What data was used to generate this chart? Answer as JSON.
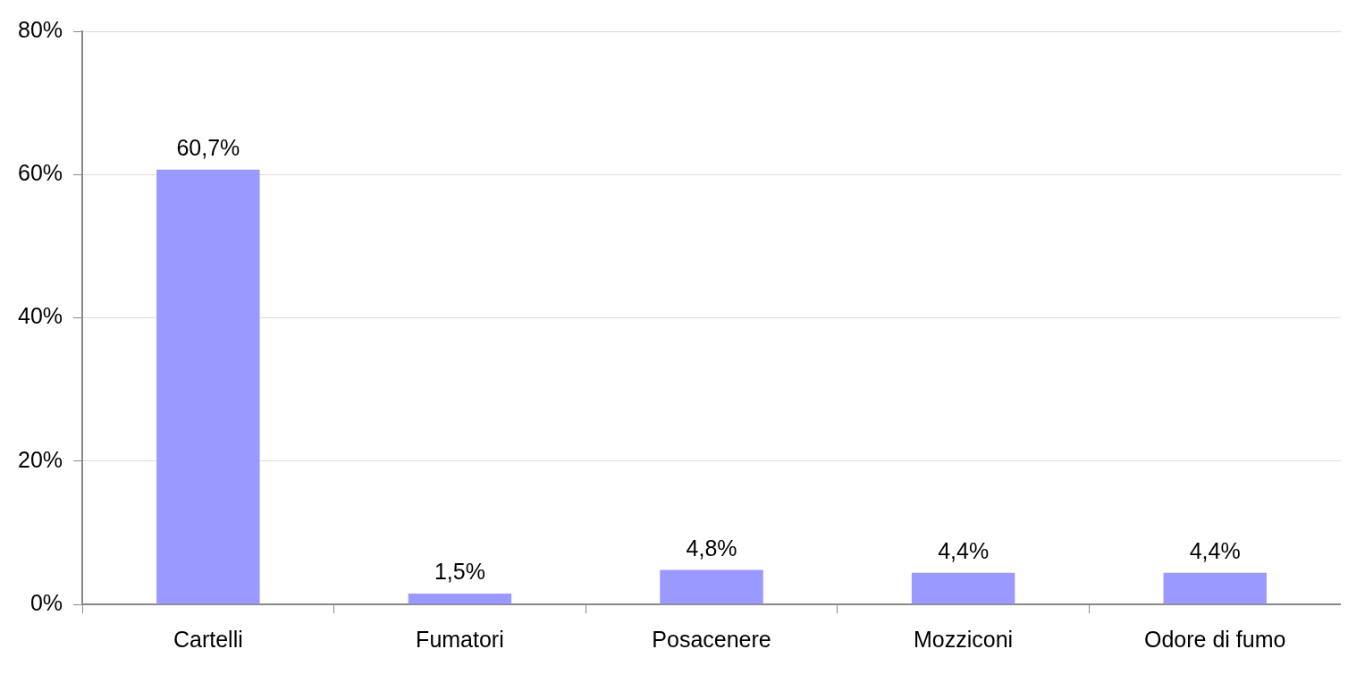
{
  "chart_data": {
    "type": "bar",
    "categories": [
      "Cartelli",
      "Fumatori",
      "Posacenere",
      "Mozziconi",
      "Odore di fumo"
    ],
    "values": [
      60.7,
      1.5,
      4.8,
      4.4,
      4.4
    ],
    "value_labels": [
      "60,7%",
      "1,5%",
      "4,8%",
      "4,4%",
      "4,4%"
    ],
    "color": "#9999ff",
    "ylim": [
      0,
      80
    ],
    "yticks": [
      {
        "value": 0,
        "label": "0%"
      },
      {
        "value": 20,
        "label": "20%"
      },
      {
        "value": 40,
        "label": "40%"
      },
      {
        "value": 60,
        "label": "60%"
      },
      {
        "value": 80,
        "label": "80%"
      }
    ],
    "grid": "y",
    "legend": false
  }
}
